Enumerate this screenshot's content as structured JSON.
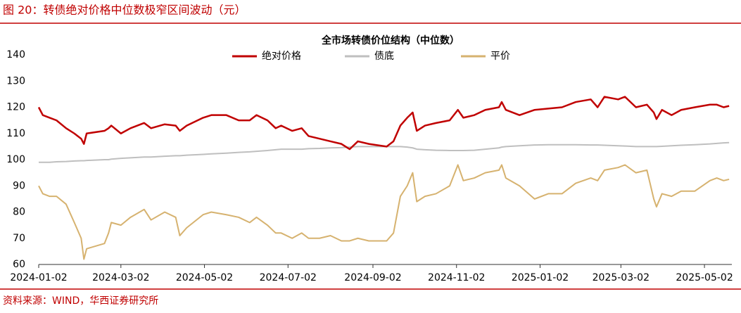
{
  "header": {
    "title": "图 20：转债绝对价格中位数极窄区间波动（元）"
  },
  "chart_data": {
    "type": "line",
    "title": "全市场转债价位结构（中位数）",
    "x": [
      "2024-01-02",
      "2024-01-05",
      "2024-01-10",
      "2024-01-15",
      "2024-01-22",
      "2024-01-28",
      "2024-02-02",
      "2024-02-04",
      "2024-02-06",
      "2024-02-19",
      "2024-02-22",
      "2024-02-24",
      "2024-03-02",
      "2024-03-09",
      "2024-03-19",
      "2024-03-24",
      "2024-04-03",
      "2024-04-11",
      "2024-04-14",
      "2024-04-19",
      "2024-05-01",
      "2024-05-07",
      "2024-05-18",
      "2024-05-27",
      "2024-06-04",
      "2024-06-09",
      "2024-06-17",
      "2024-06-23",
      "2024-06-27",
      "2024-07-05",
      "2024-07-12",
      "2024-07-17",
      "2024-07-25",
      "2024-08-02",
      "2024-08-10",
      "2024-08-16",
      "2024-08-22",
      "2024-08-30",
      "2024-09-12",
      "2024-09-17",
      "2024-09-22",
      "2024-09-27",
      "2024-10-01",
      "2024-10-04",
      "2024-10-10",
      "2024-10-18",
      "2024-10-28",
      "2024-11-03",
      "2024-11-07",
      "2024-11-15",
      "2024-11-23",
      "2024-12-03",
      "2024-12-05",
      "2024-12-08",
      "2024-12-18",
      "2024-12-29",
      "2025-01-08",
      "2025-01-18",
      "2025-01-28",
      "2025-02-08",
      "2025-02-13",
      "2025-02-18",
      "2025-02-28",
      "2025-03-05",
      "2025-03-13",
      "2025-03-21",
      "2025-03-26",
      "2025-03-28",
      "2025-04-01",
      "2025-04-08",
      "2025-04-15",
      "2025-04-25",
      "2025-05-06",
      "2025-05-11",
      "2025-05-16",
      "2025-05-20"
    ],
    "xlim": [
      "2024-01-02",
      "2025-05-22"
    ],
    "xticks": [
      "2024-01-02",
      "2024-03-02",
      "2024-05-02",
      "2024-07-02",
      "2024-09-02",
      "2024-11-02",
      "2025-01-02",
      "2025-03-02",
      "2025-05-02"
    ],
    "ylim": [
      60,
      140
    ],
    "yticks": [
      60,
      70,
      80,
      90,
      100,
      110,
      120,
      130,
      140
    ],
    "legend": "top",
    "series": [
      {
        "name": "绝对价格",
        "color": "#c00000",
        "values": [
          120,
          117,
          116,
          115,
          112,
          110,
          108,
          106,
          110,
          111,
          112,
          113,
          110,
          112,
          114,
          112,
          113.5,
          113,
          111,
          113,
          116,
          117,
          117,
          115,
          115,
          117,
          115,
          112,
          113,
          111,
          112,
          109,
          108,
          107,
          106,
          104,
          107,
          106,
          105,
          107,
          113,
          116,
          118,
          111,
          113,
          114,
          115,
          119,
          116,
          117,
          119,
          120,
          122,
          119,
          117,
          119,
          119.5,
          120,
          122,
          123,
          120,
          124,
          123,
          124,
          120,
          121,
          118,
          115.5,
          119,
          117,
          119,
          120,
          121,
          121,
          120,
          120.5
        ]
      },
      {
        "name": "债底",
        "color": "#bfbfbf",
        "values": [
          99,
          99,
          99,
          99.2,
          99.3,
          99.5,
          99.6,
          99.6,
          99.7,
          100,
          100,
          100.2,
          100.5,
          100.7,
          101,
          101,
          101.3,
          101.5,
          101.5,
          101.7,
          102,
          102.2,
          102.5,
          102.8,
          103,
          103.2,
          103.5,
          103.8,
          104,
          104,
          104,
          104.2,
          104.3,
          104.5,
          104.6,
          104.8,
          105,
          105,
          105,
          105,
          105,
          104.8,
          104.5,
          104,
          103.8,
          103.6,
          103.5,
          103.5,
          103.5,
          103.6,
          104,
          104.5,
          104.8,
          105,
          105.3,
          105.6,
          105.7,
          105.7,
          105.7,
          105.6,
          105.6,
          105.5,
          105.3,
          105.2,
          105,
          105,
          105,
          105,
          105.1,
          105.3,
          105.5,
          105.7,
          106,
          106.2,
          106.4,
          106.5
        ]
      },
      {
        "name": "平价",
        "color": "#d6b26f",
        "values": [
          90,
          87,
          86,
          86,
          83,
          76,
          70,
          62,
          66,
          68,
          72,
          76,
          75,
          78,
          81,
          77,
          80,
          78,
          71,
          74,
          79,
          80,
          79,
          78,
          76,
          78,
          75,
          72,
          72,
          70,
          72,
          70,
          70,
          71,
          69,
          69,
          70,
          69,
          69,
          72,
          86,
          90,
          95,
          84,
          86,
          87,
          90,
          98,
          92,
          93,
          95,
          96,
          98,
          93,
          90,
          85,
          87,
          87,
          91,
          93,
          92,
          96,
          97,
          98,
          95,
          96,
          85,
          82,
          87,
          86,
          88,
          88,
          92,
          93,
          92,
          92.5
        ]
      }
    ]
  },
  "footer": {
    "source": "资料来源：WIND，华西证券研究所"
  }
}
